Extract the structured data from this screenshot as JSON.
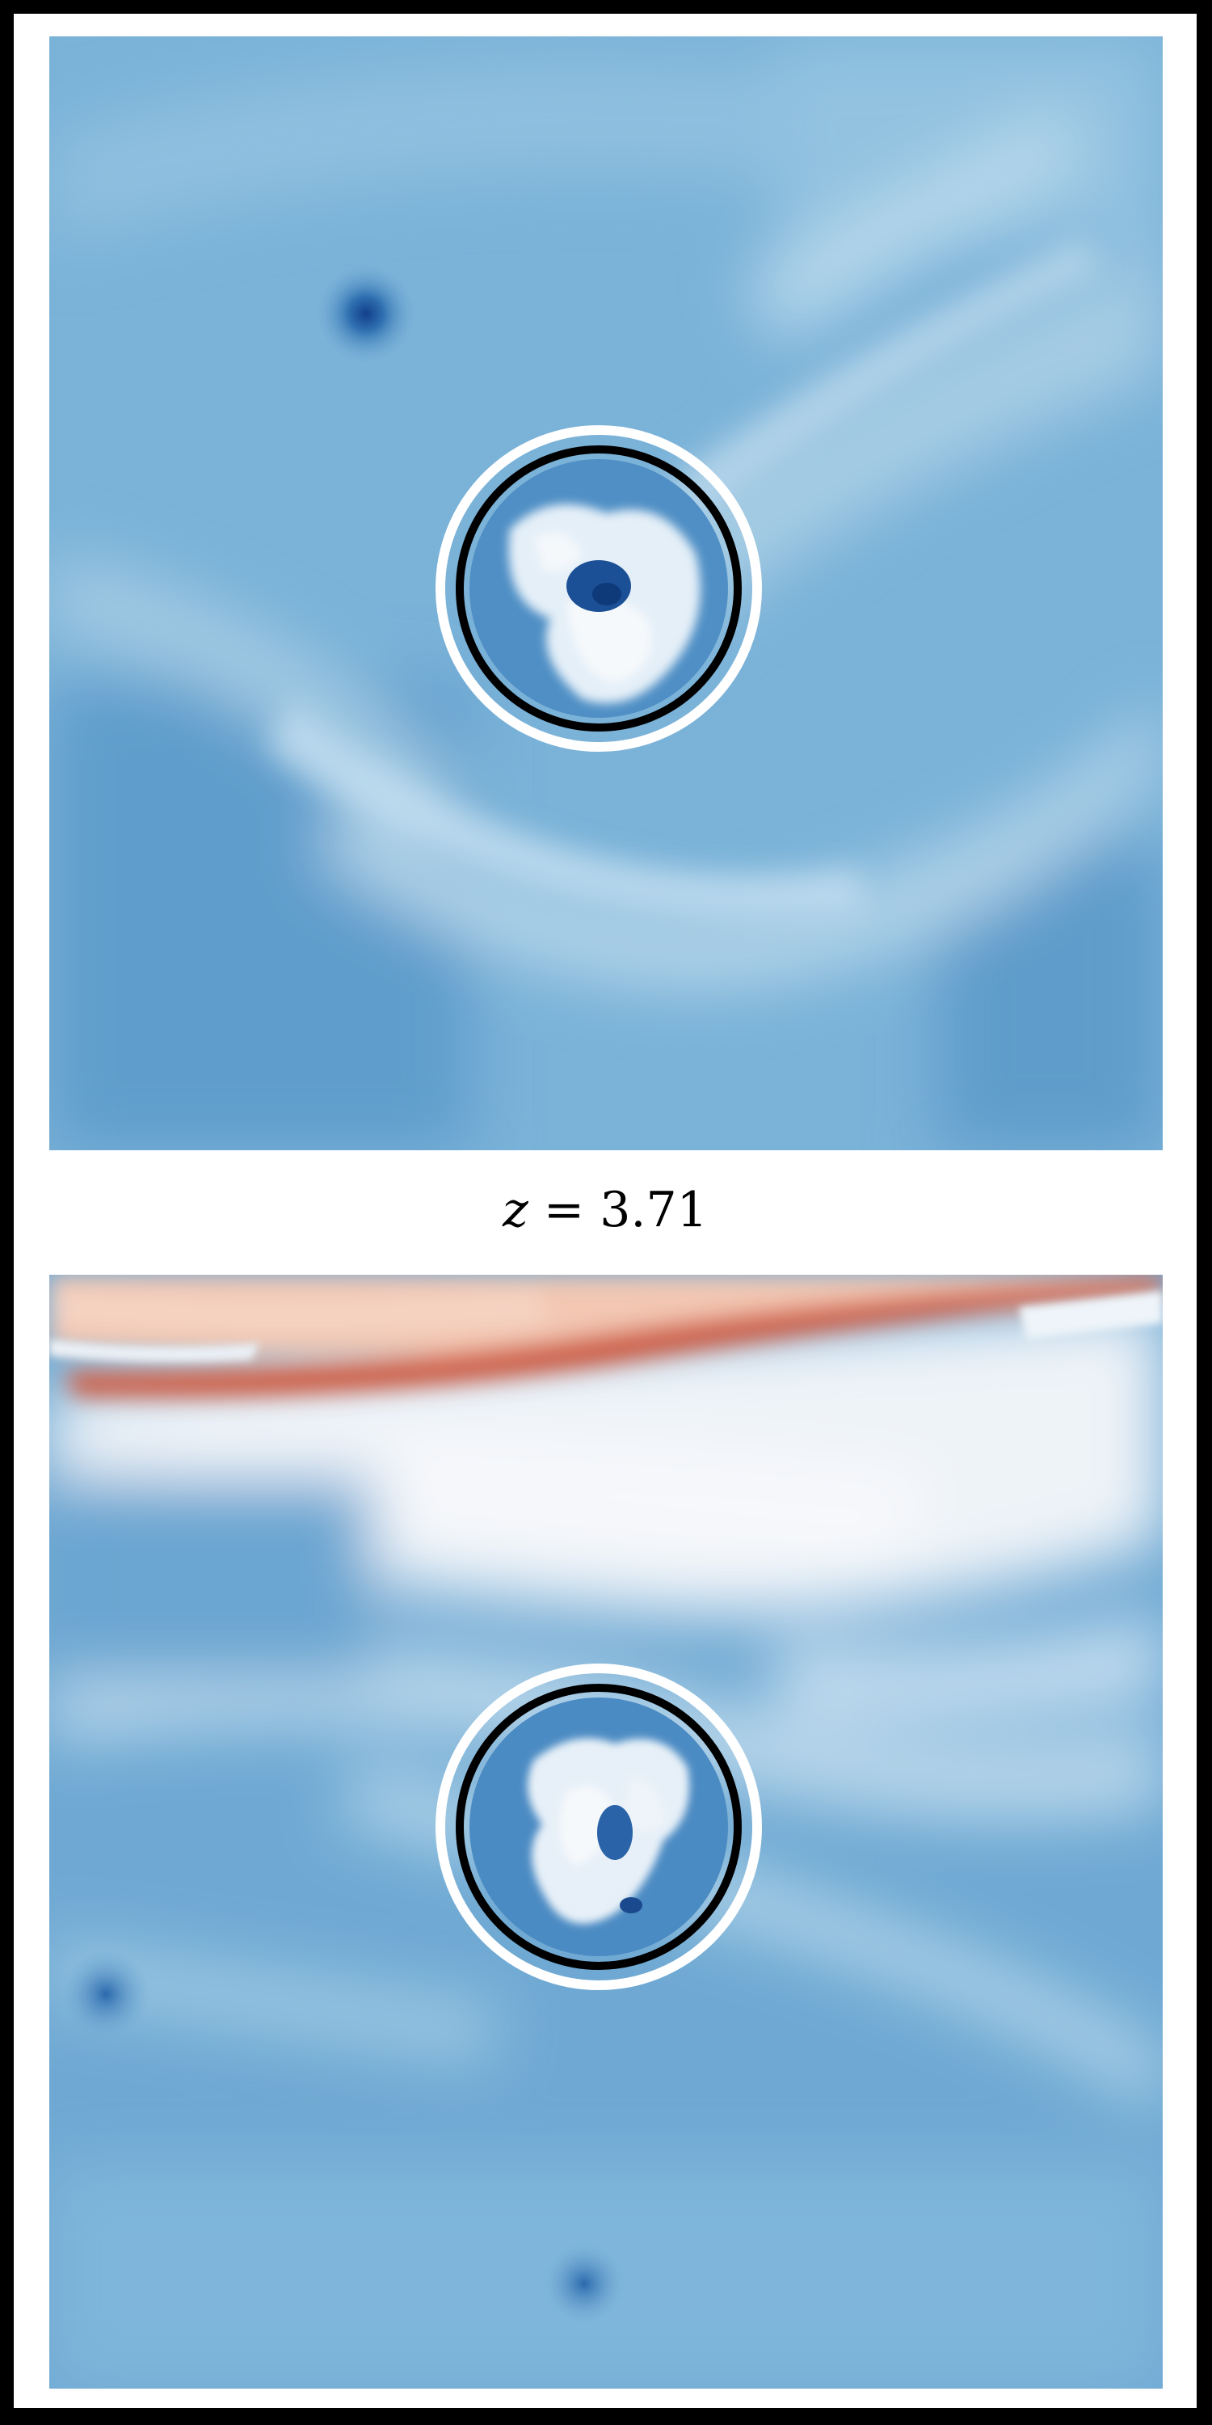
{
  "caption": {
    "variable": "z",
    "equals": "=",
    "value": "3.71"
  },
  "colormap": {
    "name": "RdBu_r",
    "deep_blue": "#1f5fa8",
    "mid_blue": "#5fa0cf",
    "light_blue": "#a9cfe6",
    "white": "#f4f7fa",
    "light_red": "#f4c0a6",
    "deep_red": "#cc4f36"
  },
  "overlay": {
    "outer_ring_color": "#ffffff",
    "inner_ring_color": "#000000"
  }
}
